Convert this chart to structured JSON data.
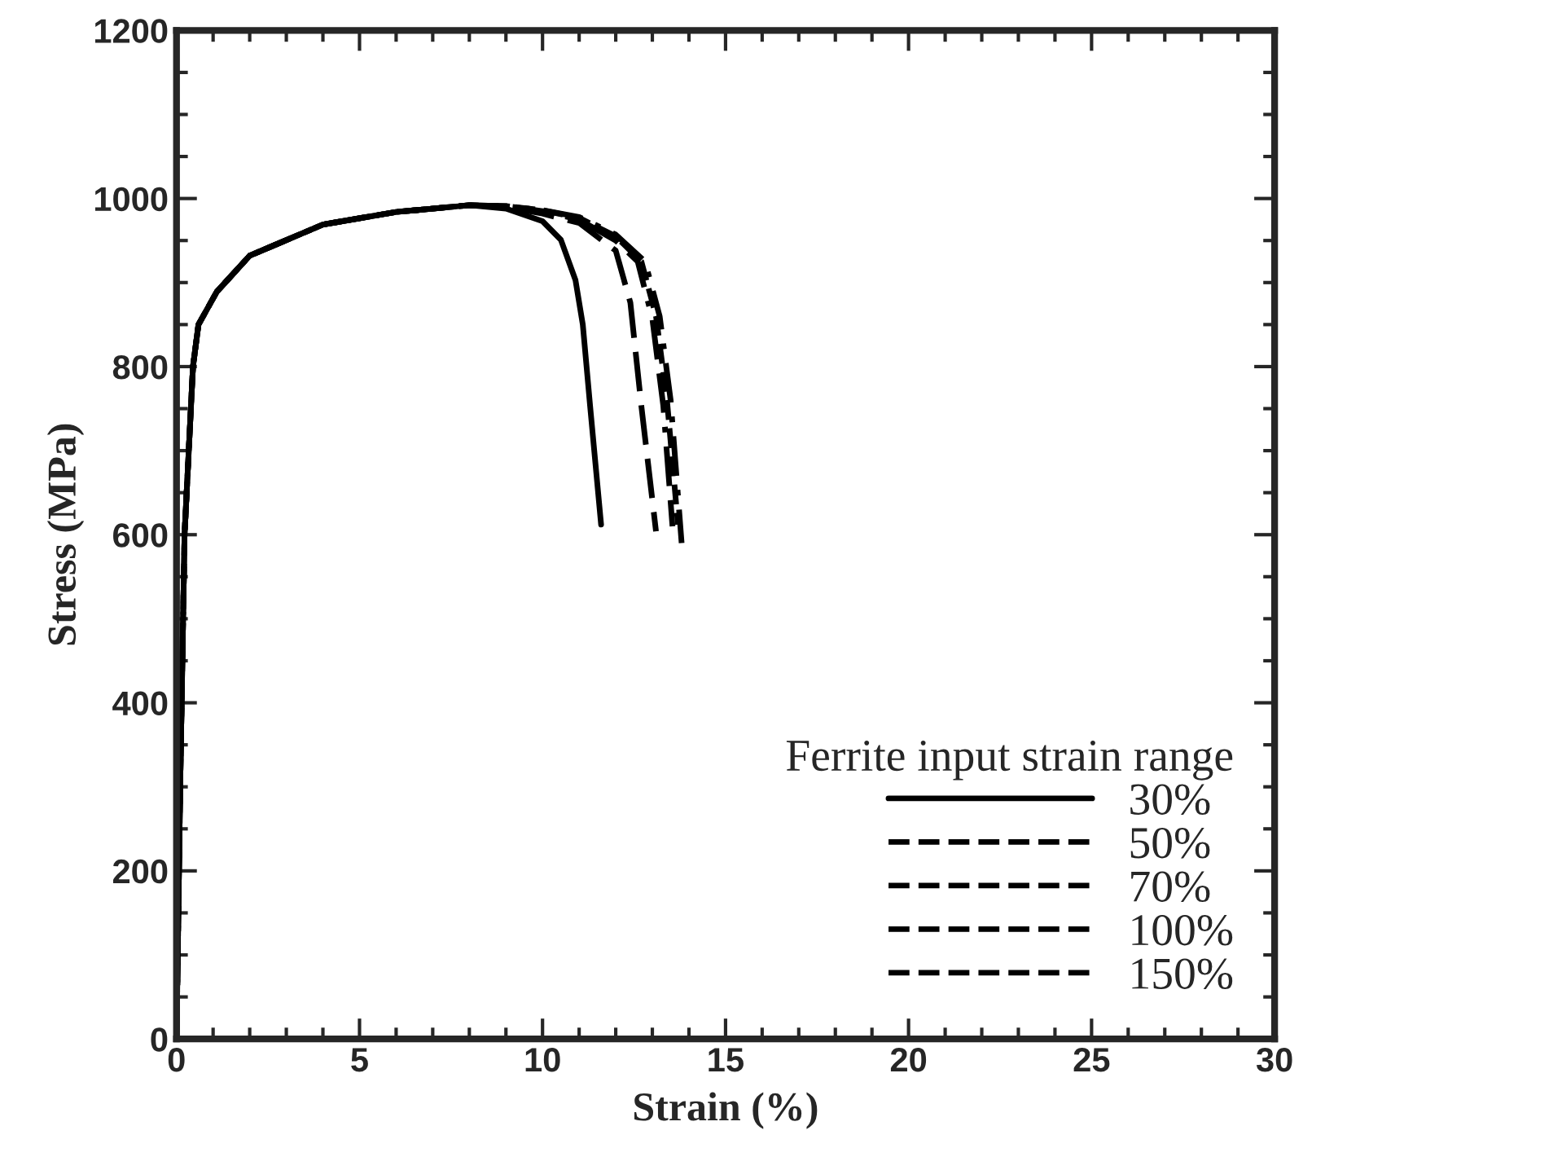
{
  "chart_data": {
    "type": "line",
    "xlabel": "Strain (%)",
    "ylabel": "Stress (MPa)",
    "legend_title": "Ferrite input strain range",
    "legend": "bottom right",
    "grid": false,
    "marker": "none",
    "xlim": [
      0,
      30
    ],
    "xticks": [
      0,
      5,
      10,
      15,
      20,
      25,
      30
    ],
    "ylim": [
      0,
      1200
    ],
    "yticks": [
      0,
      200,
      400,
      600,
      800,
      1000,
      1200
    ],
    "series": [
      {
        "name": "30%",
        "color": "#000000",
        "line_style": "solid",
        "x": [
          0,
          0.1,
          0.22,
          0.45,
          0.6,
          1.1,
          2,
          4,
          6,
          8,
          9,
          10,
          10.5,
          10.9,
          11.1,
          11.3,
          11.6
        ],
        "values": [
          0,
          300,
          600,
          800,
          850,
          889,
          932,
          969,
          984,
          992,
          988,
          973,
          951,
          903,
          850,
          753,
          612
        ]
      },
      {
        "name": "50%",
        "color": "#000000",
        "line_style": "longdash",
        "x": [
          0,
          0.1,
          0.22,
          0.45,
          0.6,
          1.1,
          2,
          4,
          6,
          8,
          9,
          10,
          11,
          12,
          12.4,
          12.7,
          13.1
        ],
        "values": [
          0,
          300,
          600,
          800,
          850,
          889,
          932,
          969,
          984,
          992,
          990,
          982,
          971,
          938,
          876,
          753,
          604
        ]
      },
      {
        "name": "70%",
        "color": "#000000",
        "line_style": "longdashdot",
        "x": [
          0,
          0.1,
          0.22,
          0.45,
          0.6,
          1.1,
          2,
          4,
          6,
          8,
          9,
          10,
          11,
          12,
          12.6,
          13,
          13.3,
          13.55
        ],
        "values": [
          0,
          300,
          600,
          800,
          850,
          889,
          932,
          969,
          984,
          992,
          991,
          985,
          975,
          950,
          925,
          857,
          753,
          610
        ]
      },
      {
        "name": "100%",
        "color": "#000000",
        "line_style": "dashed",
        "x": [
          0,
          0.1,
          0.22,
          0.45,
          0.6,
          1.1,
          2,
          4,
          6,
          8,
          9,
          10,
          11,
          12,
          12.7,
          13.1,
          13.4,
          13.7
        ],
        "values": [
          0,
          300,
          600,
          800,
          850,
          889,
          932,
          969,
          984,
          992,
          991,
          986,
          977,
          955,
          925,
          860,
          760,
          612
        ]
      },
      {
        "name": "150%",
        "color": "#000000",
        "line_style": "dashdot",
        "x": [
          0,
          0.1,
          0.22,
          0.45,
          0.6,
          1.1,
          2,
          4,
          6,
          8,
          9,
          10,
          11,
          12,
          12.8,
          13.2,
          13.5,
          13.8
        ],
        "values": [
          0,
          300,
          600,
          800,
          850,
          889,
          932,
          969,
          984,
          992,
          991,
          986,
          978,
          957,
          925,
          860,
          760,
          590
        ]
      }
    ]
  }
}
